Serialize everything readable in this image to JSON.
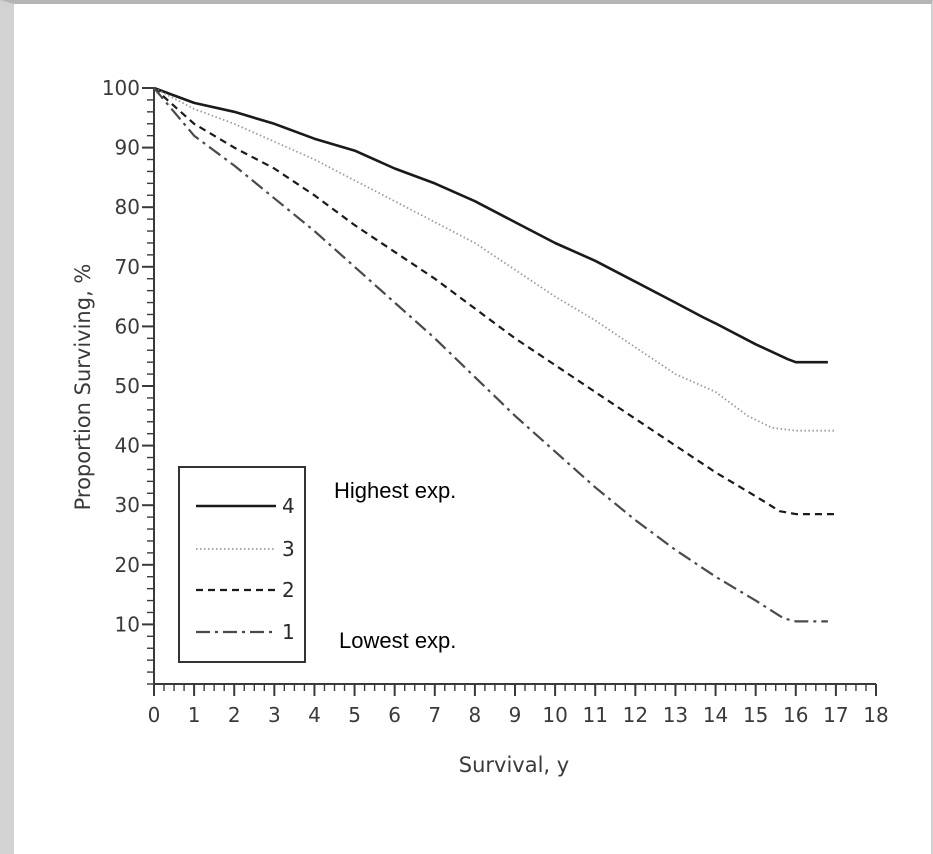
{
  "chart_data": {
    "type": "line",
    "xlabel": "Survival, y",
    "ylabel": "Proportion Surviving, %",
    "xlim": [
      0,
      18
    ],
    "ylim": [
      0,
      100
    ],
    "x_ticks": [
      "0",
      "1",
      "2",
      "3",
      "4",
      "5",
      "6",
      "7",
      "8",
      "9",
      "10",
      "11",
      "12",
      "13",
      "14",
      "15",
      "16",
      "17",
      "18"
    ],
    "y_ticks": [
      "10",
      "20",
      "30",
      "40",
      "50",
      "60",
      "70",
      "80",
      "90",
      "100"
    ],
    "grid": false,
    "legend_position": "bottom-left",
    "series": [
      {
        "name": "4",
        "style": "solid",
        "color": "#1a1a1a",
        "points": [
          [
            0,
            100
          ],
          [
            1,
            97.5
          ],
          [
            2,
            96
          ],
          [
            3,
            94
          ],
          [
            4,
            91.5
          ],
          [
            5,
            89.5
          ],
          [
            6,
            86.5
          ],
          [
            7,
            84
          ],
          [
            8,
            81
          ],
          [
            9,
            77.5
          ],
          [
            10,
            74
          ],
          [
            11,
            71
          ],
          [
            12,
            67.5
          ],
          [
            13,
            64
          ],
          [
            13.7,
            61.5
          ],
          [
            14,
            60.5
          ],
          [
            15,
            57
          ],
          [
            15.8,
            54.5
          ],
          [
            16,
            54
          ],
          [
            16.8,
            54
          ]
        ]
      },
      {
        "name": "3",
        "style": "dotted",
        "color": "#9a9a9a",
        "points": [
          [
            0,
            100
          ],
          [
            1,
            96.5
          ],
          [
            2,
            94
          ],
          [
            3,
            91
          ],
          [
            4,
            88
          ],
          [
            5,
            84.5
          ],
          [
            6,
            81
          ],
          [
            7,
            77.5
          ],
          [
            8,
            74
          ],
          [
            9,
            69.5
          ],
          [
            10,
            65
          ],
          [
            11,
            61
          ],
          [
            12,
            56.5
          ],
          [
            13,
            52
          ],
          [
            14,
            49
          ],
          [
            14.8,
            45
          ],
          [
            15.4,
            43
          ],
          [
            16,
            42.5
          ],
          [
            17,
            42.5
          ]
        ]
      },
      {
        "name": "2",
        "style": "dashed",
        "color": "#1a1a1a",
        "points": [
          [
            0,
            100
          ],
          [
            1,
            94
          ],
          [
            2,
            90
          ],
          [
            3,
            86.5
          ],
          [
            4,
            82
          ],
          [
            5,
            77
          ],
          [
            6,
            72.5
          ],
          [
            7,
            68
          ],
          [
            8,
            63
          ],
          [
            9,
            58
          ],
          [
            10,
            53.5
          ],
          [
            11,
            49
          ],
          [
            12,
            44.5
          ],
          [
            13,
            40
          ],
          [
            14,
            35.5
          ],
          [
            15,
            31.5
          ],
          [
            15.6,
            29
          ],
          [
            16,
            28.5
          ],
          [
            17,
            28.5
          ]
        ]
      },
      {
        "name": "1",
        "style": "dashdot",
        "color": "#4a4a4a",
        "points": [
          [
            0,
            100
          ],
          [
            1,
            92
          ],
          [
            2,
            87
          ],
          [
            3,
            81.5
          ],
          [
            4,
            76
          ],
          [
            5,
            70
          ],
          [
            6,
            64
          ],
          [
            7,
            58
          ],
          [
            8,
            51.5
          ],
          [
            9,
            45
          ],
          [
            10,
            39
          ],
          [
            11,
            33
          ],
          [
            12,
            27.5
          ],
          [
            13,
            22.5
          ],
          [
            14,
            18
          ],
          [
            15,
            14
          ],
          [
            15.7,
            11
          ],
          [
            16,
            10.5
          ],
          [
            16.8,
            10.5
          ]
        ]
      }
    ],
    "annotations": [
      "Highest exp.",
      "Lowest exp."
    ]
  }
}
